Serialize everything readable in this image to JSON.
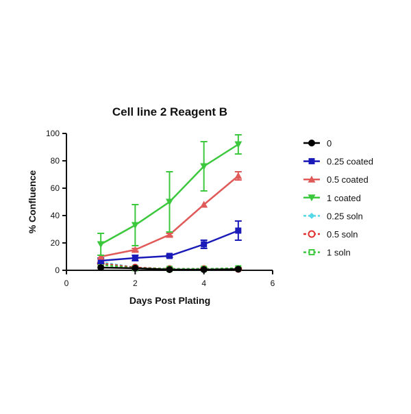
{
  "chart_data": {
    "type": "line",
    "title": "Cell line 2 Reagent B",
    "xlabel": "Days Post Plating",
    "ylabel": "% Confluence",
    "xlim": [
      0,
      6
    ],
    "ylim": [
      0,
      100
    ],
    "xticks": [
      0,
      2,
      4,
      6
    ],
    "yticks": [
      0,
      20,
      40,
      60,
      80,
      100
    ],
    "grid": false,
    "legend_position": "right",
    "x": [
      1,
      2,
      3,
      4,
      5
    ],
    "series": [
      {
        "name": "0",
        "color": "#000000",
        "marker": "circle-filled",
        "dashed": false,
        "values": [
          2,
          1.5,
          0.5,
          0.5,
          0.8
        ],
        "errors": [
          0,
          0,
          0,
          0,
          0
        ]
      },
      {
        "name": "0.25 coated",
        "color": "#1a1ab8",
        "marker": "square-filled",
        "dashed": false,
        "values": [
          7,
          9,
          10.5,
          19,
          29
        ],
        "errors": [
          2,
          2,
          1,
          3,
          7
        ]
      },
      {
        "name": "0.5 coated",
        "color": "#e05a5a",
        "marker": "triangle-up-filled",
        "dashed": false,
        "values": [
          10,
          15,
          26,
          48,
          69
        ],
        "errors": [
          0,
          1,
          1,
          0,
          3
        ]
      },
      {
        "name": "1 coated",
        "color": "#3cc83c",
        "marker": "triangle-down-filled",
        "dashed": false,
        "values": [
          19,
          33,
          50,
          76,
          92
        ],
        "errors": [
          8,
          15,
          22,
          18,
          7
        ]
      },
      {
        "name": "0.25 soln",
        "color": "#55d8e8",
        "marker": "diamond-filled",
        "dashed": true,
        "values": [
          6,
          2,
          1,
          1,
          1
        ],
        "errors": [
          0,
          0,
          0,
          0,
          0
        ]
      },
      {
        "name": "0.5 soln",
        "color": "#e03030",
        "marker": "circle-open",
        "dashed": true,
        "values": [
          5,
          2,
          1,
          1,
          1
        ],
        "errors": [
          0,
          0,
          0,
          0,
          0
        ]
      },
      {
        "name": "1 soln",
        "color": "#3cc83c",
        "marker": "square-open",
        "dashed": true,
        "values": [
          4,
          1.5,
          1,
          1,
          1.5
        ],
        "errors": [
          0,
          0,
          0,
          0,
          0
        ]
      }
    ]
  }
}
